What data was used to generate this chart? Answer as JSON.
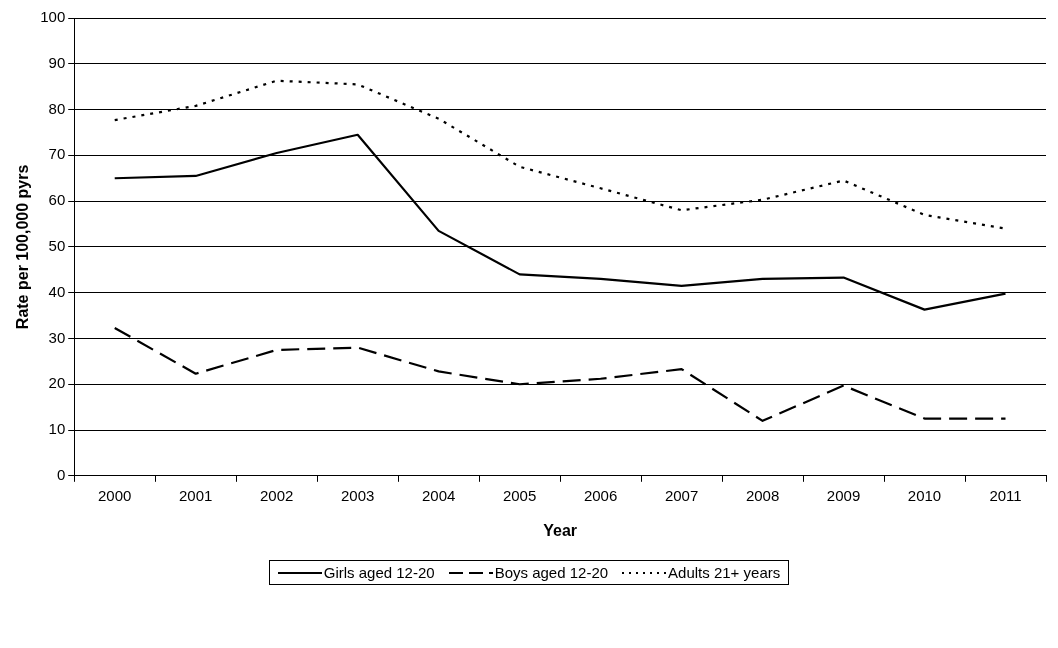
{
  "chart_data": {
    "type": "line",
    "xlabel": "Year",
    "ylabel": "Rate per 100,000 pyrs",
    "categories": [
      "2000",
      "2001",
      "2002",
      "2003",
      "2004",
      "2005",
      "2006",
      "2007",
      "2008",
      "2009",
      "2010",
      "2011"
    ],
    "ylim": [
      0,
      100
    ],
    "yticks": [
      0,
      10,
      20,
      30,
      40,
      50,
      60,
      70,
      80,
      90,
      100
    ],
    "grid": "y",
    "legend": "bottom",
    "marker": "none",
    "series": [
      {
        "name": "Girls aged 12-20",
        "color": "#000000",
        "line_style": "solid",
        "values": [
          65,
          65.5,
          70.5,
          74.5,
          53.5,
          44,
          43,
          41.5,
          43,
          43.3,
          36.3,
          39.8
        ]
      },
      {
        "name": "Boys aged 12-20",
        "color": "#000000",
        "line_style": "dashed",
        "values": [
          32.3,
          22.3,
          27.5,
          28,
          22.8,
          20,
          21.2,
          23.3,
          12,
          19.7,
          12.5,
          12.5
        ]
      },
      {
        "name": "Adults 21+ years",
        "color": "#000000",
        "line_style": "dotted",
        "values": [
          77.7,
          80.8,
          86.3,
          85.5,
          78,
          67.5,
          62.8,
          58,
          60.3,
          64.5,
          57,
          54
        ]
      }
    ]
  }
}
